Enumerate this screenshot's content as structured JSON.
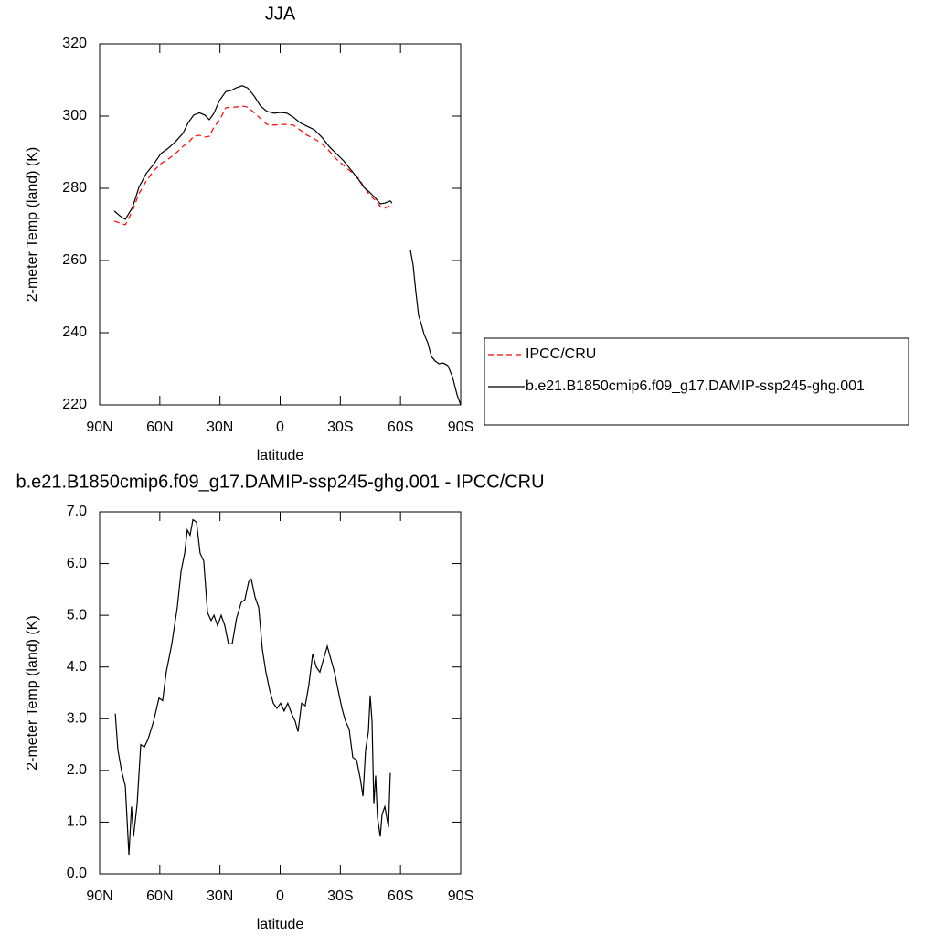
{
  "chart_data": [
    {
      "type": "line",
      "title": "JJA",
      "xlabel": "latitude",
      "ylabel": "2-meter Temp (land) (K)",
      "x": [
        82.7,
        80,
        77.2,
        73.6,
        70.4,
        66.8,
        63.1,
        59.5,
        55.8,
        52.2,
        48.5,
        45.8,
        43.1,
        40.3,
        37.6,
        35.3,
        33.0,
        30.3,
        27.1,
        24.4,
        22.1,
        18.9,
        16.2,
        13.0,
        9.8,
        6.6,
        2.9,
        -0.2,
        -3.4,
        -6.6,
        -9.8,
        -13.4,
        -17.1,
        -20.7,
        -24.4,
        -28.0,
        -31.7,
        -35.3,
        -39.0,
        -41.7,
        -44.4,
        -47.2,
        -49.9,
        -52.2,
        -54.9,
        -55.8,
        -60,
        -64.9,
        -66.3,
        -67.6,
        -69.0,
        -70.4,
        -71.8,
        -73.6,
        -75.4,
        -77.2,
        -79.1,
        -81.3,
        -83.6,
        -85.9,
        -88.2,
        -90
      ],
      "series": [
        {
          "name": "IPCC/CRU",
          "color": "#ff0000",
          "dash": true,
          "values": [
            270.9,
            270.4,
            269.9,
            273.7,
            278.5,
            282.0,
            284.8,
            286.8,
            288.1,
            289.6,
            291.6,
            292.6,
            294.4,
            294.7,
            294.2,
            294.4,
            297.0,
            298.8,
            302.3,
            302.5,
            302.5,
            302.8,
            302.5,
            301.0,
            299.3,
            297.7,
            297.5,
            297.7,
            297.7,
            297.5,
            296.2,
            294.7,
            293.7,
            292.4,
            290.4,
            288.1,
            286.3,
            284.6,
            282.8,
            280.5,
            278.3,
            276.8,
            275.0,
            274.5,
            275.2,
            274.5,
            null,
            null,
            null,
            null,
            null,
            null,
            null,
            null,
            null,
            null,
            null,
            null,
            null,
            null,
            null,
            null
          ]
        },
        {
          "name": "b.e21.B1850cmip6.f09_g17.DAMIP-ssp245-ghg.001",
          "color": "#000000",
          "dash": false,
          "values": [
            273.7,
            272.4,
            271.4,
            274.7,
            280.3,
            284.1,
            286.6,
            289.6,
            291.1,
            292.9,
            295.2,
            298.2,
            300.3,
            300.9,
            300.3,
            299.0,
            300.8,
            304.3,
            306.8,
            307.1,
            307.8,
            308.4,
            307.8,
            305.6,
            302.8,
            301.3,
            300.8,
            301.0,
            300.8,
            299.7,
            298.2,
            297.2,
            296.2,
            294.2,
            291.6,
            289.6,
            287.6,
            285.1,
            282.5,
            280.3,
            279.0,
            277.5,
            275.7,
            275.9,
            276.5,
            275.9,
            null,
            263.0,
            258.7,
            251.6,
            244.8,
            242.3,
            239.5,
            237.2,
            233.4,
            232.2,
            231.4,
            231.6,
            230.9,
            227.8,
            222.8,
            220.0
          ]
        }
      ],
      "xlim": [
        90,
        -90
      ],
      "xticks": [
        {
          "value": 90,
          "label": "90N"
        },
        {
          "value": 60,
          "label": "60N"
        },
        {
          "value": 30,
          "label": "30N"
        },
        0,
        {
          "value": -30,
          "label": "30S"
        },
        {
          "value": -60,
          "label": "60S"
        },
        {
          "value": -90,
          "label": "90S"
        }
      ],
      "ylim": [
        220,
        320
      ],
      "yticks": [
        220,
        240,
        260,
        280,
        300,
        320
      ],
      "legend": "right"
    },
    {
      "type": "line",
      "title": "b.e21.B1850cmip6.f09_g17.DAMIP-ssp245-ghg.001 - IPCC/CRU",
      "xlabel": "latitude",
      "ylabel": "2-meter Temp (land) (K)",
      "x": [
        82.2,
        80.9,
        79.1,
        77.2,
        75.4,
        74.1,
        73.1,
        71.3,
        69.5,
        67.7,
        65.9,
        63.1,
        60.4,
        58.6,
        56.8,
        54.0,
        51.3,
        49.4,
        47.6,
        46.3,
        44.9,
        43.5,
        41.7,
        39.9,
        38.1,
        36.2,
        34.4,
        33.0,
        31.2,
        29.4,
        27.6,
        25.8,
        23.9,
        21.7,
        19.4,
        17.6,
        15.7,
        14.4,
        12.5,
        10.7,
        8.9,
        7.1,
        5.2,
        3.4,
        1.6,
        -0.2,
        -2.0,
        -3.8,
        -5.7,
        -7.5,
        -8.9,
        -10.7,
        -12.5,
        -14.3,
        -16.2,
        -18.0,
        -19.8,
        -21.6,
        -23.5,
        -25.3,
        -27.1,
        -28.9,
        -30.8,
        -32.6,
        -34.4,
        -36.2,
        -38.1,
        -39.9,
        -41.3,
        -42.6,
        -44.0,
        -44.9,
        -45.8,
        -46.7,
        -47.6,
        -48.5,
        -49.9,
        -50.8,
        -52.2,
        -53.1,
        -54.0,
        -54.9
      ],
      "color": "#000000",
      "values": [
        3.1,
        2.4,
        2.0,
        1.7,
        0.37,
        1.3,
        0.72,
        1.35,
        2.5,
        2.45,
        2.6,
        2.95,
        3.4,
        3.35,
        3.9,
        4.45,
        5.15,
        5.85,
        6.2,
        6.65,
        6.55,
        6.85,
        6.8,
        6.2,
        6.05,
        5.05,
        4.9,
        5.0,
        4.8,
        5.0,
        4.8,
        4.45,
        4.45,
        4.95,
        5.25,
        5.3,
        5.65,
        5.7,
        5.35,
        5.15,
        4.35,
        3.9,
        3.55,
        3.3,
        3.2,
        3.3,
        3.15,
        3.3,
        3.1,
        2.95,
        2.75,
        3.3,
        3.25,
        3.65,
        4.25,
        4.0,
        3.9,
        4.15,
        4.4,
        4.15,
        3.9,
        3.55,
        3.2,
        2.95,
        2.8,
        2.25,
        2.2,
        1.85,
        1.5,
        2.4,
        2.75,
        3.45,
        2.95,
        1.35,
        1.9,
        1.1,
        0.72,
        1.15,
        1.3,
        1.1,
        0.9,
        1.95
      ],
      "xlim": [
        90,
        -90
      ],
      "xticks": [
        {
          "value": 90,
          "label": "90N"
        },
        {
          "value": 60,
          "label": "60N"
        },
        {
          "value": 30,
          "label": "30N"
        },
        0,
        {
          "value": -30,
          "label": "30S"
        },
        {
          "value": -60,
          "label": "60S"
        },
        {
          "value": -90,
          "label": "90S"
        }
      ],
      "ylim": [
        0,
        7
      ],
      "yticks": [
        {
          "value": 0,
          "label": "0.0"
        },
        {
          "value": 1,
          "label": "1.0"
        },
        {
          "value": 2,
          "label": "2.0"
        },
        {
          "value": 3,
          "label": "3.0"
        },
        {
          "value": 4,
          "label": "4.0"
        },
        {
          "value": 5,
          "label": "5.0"
        },
        {
          "value": 6,
          "label": "6.0"
        },
        {
          "value": 7,
          "label": "7.0"
        }
      ]
    }
  ]
}
